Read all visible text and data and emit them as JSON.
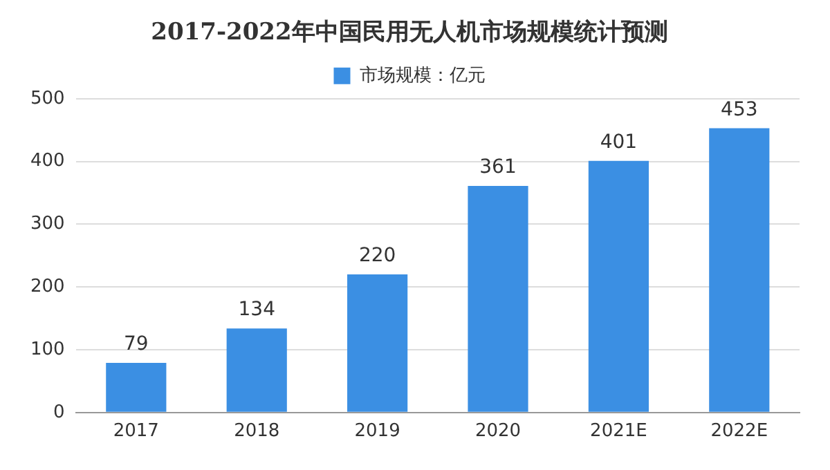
{
  "chart_data": {
    "type": "bar",
    "title": "2017-2022年中国民用无人机市场规模统计预测",
    "categories": [
      "2017",
      "2018",
      "2019",
      "2020",
      "2021E",
      "2022E"
    ],
    "series": [
      {
        "name": "市场规模：亿元",
        "color": "#3b8fe3",
        "values": [
          79,
          134,
          220,
          361,
          401,
          453
        ]
      }
    ],
    "ylim": [
      0,
      500
    ],
    "yticks": [
      0,
      100,
      200,
      300,
      400,
      500
    ],
    "grid": "y",
    "legend": "top",
    "data_labels": true
  }
}
